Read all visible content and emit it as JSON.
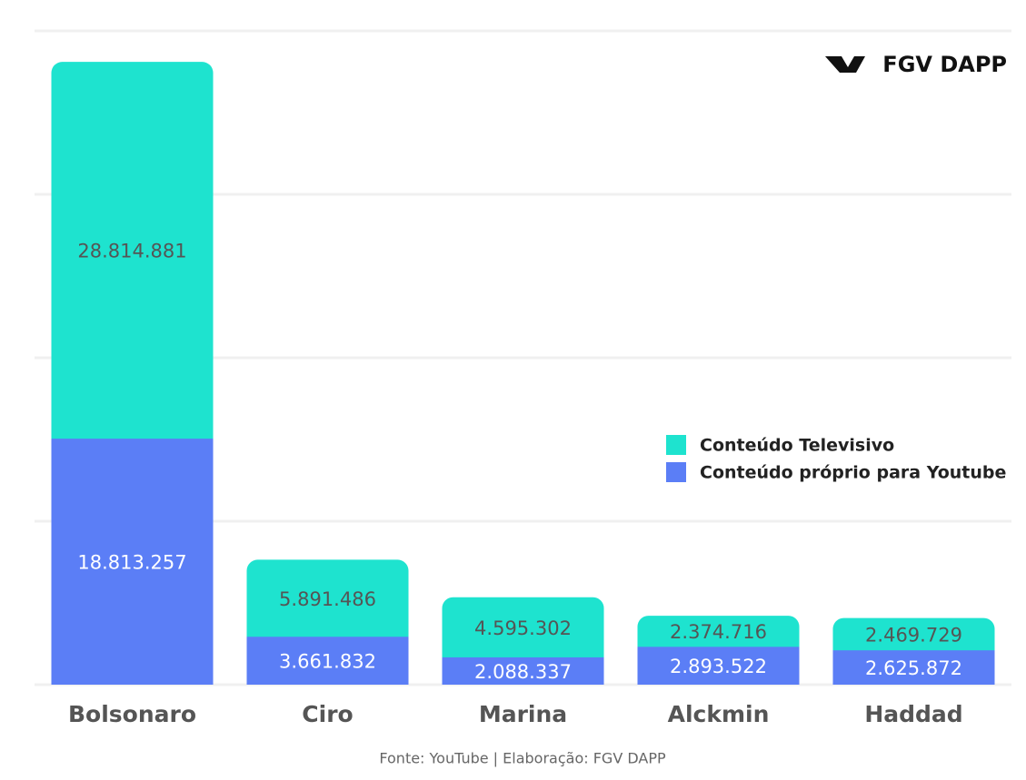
{
  "chart_data": {
    "type": "stacked_bar",
    "categories": [
      "Bolsonaro",
      "Ciro",
      "Marina",
      "Alckmin",
      "Haddad"
    ],
    "series": [
      {
        "name": "Conteúdo Televisivo",
        "color": "#1ee3cf",
        "values": [
          28814881,
          5891486,
          4595302,
          2374716,
          2469729
        ],
        "value_labels": [
          "28.814.881",
          "5.891.486",
          "4.595.302",
          "2.374.716",
          "2.469.729"
        ]
      },
      {
        "name": "Conteúdo próprio para Youtube",
        "color": "#5b7ef6",
        "values": [
          18813257,
          3661832,
          2088337,
          2893522,
          2625872
        ],
        "value_labels": [
          "18.813.257",
          "3.661.832",
          "2.088.337",
          "2.893.522",
          "2.625.872"
        ]
      }
    ],
    "ylim": [
      0,
      50000000
    ],
    "yticks": [
      0,
      12500000,
      25000000,
      37500000,
      50000000
    ],
    "grid": true,
    "legend": "right",
    "logo": "FGV DAPP",
    "source": "Fonte: YouTube | Elaboração: FGV DAPP"
  }
}
